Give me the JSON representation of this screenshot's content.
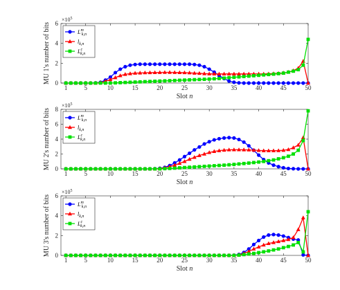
{
  "chart_data": [
    {
      "type": "line",
      "ylabel": "MU 1's number of bits",
      "xlabel": "Slot n",
      "exponent_label": "×10",
      "exponent_power": "5",
      "xlim": [
        0,
        50
      ],
      "ylim": [
        0,
        6
      ],
      "x_ticks": [
        1,
        5,
        10,
        15,
        20,
        25,
        30,
        35,
        40,
        45,
        50
      ],
      "y_ticks": [
        0,
        2,
        4,
        6
      ],
      "x": [
        1,
        2,
        3,
        4,
        5,
        6,
        7,
        8,
        9,
        10,
        11,
        12,
        13,
        14,
        15,
        16,
        17,
        18,
        19,
        20,
        21,
        22,
        23,
        24,
        25,
        26,
        27,
        28,
        29,
        30,
        31,
        32,
        33,
        34,
        35,
        36,
        37,
        38,
        39,
        40,
        41,
        42,
        43,
        44,
        45,
        46,
        47,
        48,
        49,
        50
      ],
      "series": [
        {
          "legend_main": "L",
          "legend_sup": "m",
          "legend_sub": "k,n",
          "color": "#0000ff",
          "marker": "circle",
          "values": [
            0,
            0,
            0,
            0,
            0,
            0,
            0.02,
            0.08,
            0.3,
            0.6,
            1.05,
            1.4,
            1.65,
            1.8,
            1.87,
            1.9,
            1.9,
            1.9,
            1.9,
            1.9,
            1.9,
            1.9,
            1.9,
            1.9,
            1.9,
            1.9,
            1.87,
            1.8,
            1.65,
            1.4,
            1.1,
            0.75,
            0.45,
            0.2,
            0.08,
            0.02,
            0,
            0,
            0,
            0,
            0,
            0,
            0,
            0,
            0,
            0,
            0,
            0,
            0,
            0
          ]
        },
        {
          "legend_main": "l",
          "legend_sup": "",
          "legend_sub": "k,n",
          "color": "#ff0000",
          "marker": "triangle",
          "values": [
            0,
            0,
            0,
            0,
            0,
            0,
            0,
            0.05,
            0.18,
            0.35,
            0.55,
            0.75,
            0.88,
            0.95,
            1.0,
            1.02,
            1.04,
            1.05,
            1.06,
            1.07,
            1.08,
            1.08,
            1.07,
            1.06,
            1.05,
            1.03,
            1.0,
            0.98,
            0.95,
            0.93,
            0.92,
            0.92,
            0.92,
            0.92,
            0.92,
            0.92,
            0.92,
            0.92,
            0.92,
            0.92,
            0.92,
            0.93,
            0.95,
            0.98,
            1.02,
            1.1,
            1.25,
            1.5,
            2.2,
            0
          ]
        },
        {
          "legend_main": "L",
          "legend_sup": "c",
          "legend_sub": "k,n",
          "color": "#00e000",
          "marker": "square",
          "values": [
            0,
            0,
            0,
            0,
            0,
            0,
            0,
            0,
            0,
            0,
            0.02,
            0.04,
            0.06,
            0.08,
            0.1,
            0.12,
            0.14,
            0.16,
            0.18,
            0.2,
            0.22,
            0.24,
            0.26,
            0.28,
            0.3,
            0.32,
            0.34,
            0.36,
            0.38,
            0.4,
            0.43,
            0.46,
            0.5,
            0.54,
            0.58,
            0.62,
            0.66,
            0.7,
            0.74,
            0.78,
            0.82,
            0.86,
            0.9,
            0.95,
            1.0,
            1.1,
            1.2,
            1.35,
            1.8,
            4.4
          ]
        }
      ]
    },
    {
      "type": "line",
      "ylabel": "MU 2's number of bits",
      "xlabel": "Slot n",
      "exponent_label": "×10",
      "exponent_power": "5",
      "xlim": [
        0,
        50
      ],
      "ylim": [
        0,
        8
      ],
      "x_ticks": [
        1,
        5,
        10,
        15,
        20,
        25,
        30,
        35,
        40,
        45,
        50
      ],
      "y_ticks": [
        0,
        2,
        4,
        6,
        8
      ],
      "x": [
        1,
        2,
        3,
        4,
        5,
        6,
        7,
        8,
        9,
        10,
        11,
        12,
        13,
        14,
        15,
        16,
        17,
        18,
        19,
        20,
        21,
        22,
        23,
        24,
        25,
        26,
        27,
        28,
        29,
        30,
        31,
        32,
        33,
        34,
        35,
        36,
        37,
        38,
        39,
        40,
        41,
        42,
        43,
        44,
        45,
        46,
        47,
        48,
        49,
        50
      ],
      "series": [
        {
          "legend_main": "L",
          "legend_sup": "m",
          "legend_sub": "k,n",
          "color": "#0000ff",
          "marker": "circle",
          "values": [
            0,
            0,
            0,
            0,
            0,
            0,
            0,
            0,
            0,
            0,
            0,
            0,
            0,
            0,
            0,
            0,
            0,
            0,
            0.02,
            0.08,
            0.2,
            0.45,
            0.8,
            1.2,
            1.65,
            2.1,
            2.55,
            2.95,
            3.35,
            3.65,
            3.9,
            4.05,
            4.15,
            4.2,
            4.15,
            3.95,
            3.6,
            3.1,
            2.5,
            1.85,
            1.25,
            0.8,
            0.5,
            0.3,
            0.15,
            0.05,
            0.02,
            0,
            0,
            0
          ]
        },
        {
          "legend_main": "l",
          "legend_sup": "",
          "legend_sub": "k,n",
          "color": "#ff0000",
          "marker": "triangle",
          "values": [
            0,
            0,
            0,
            0,
            0,
            0,
            0,
            0,
            0,
            0,
            0,
            0,
            0,
            0,
            0,
            0,
            0,
            0,
            0,
            0.05,
            0.15,
            0.3,
            0.5,
            0.75,
            1.0,
            1.3,
            1.55,
            1.8,
            2.0,
            2.2,
            2.35,
            2.45,
            2.52,
            2.56,
            2.58,
            2.58,
            2.57,
            2.55,
            2.52,
            2.48,
            2.45,
            2.45,
            2.45,
            2.46,
            2.5,
            2.6,
            2.85,
            3.2,
            4.2,
            0
          ]
        },
        {
          "legend_main": "L",
          "legend_sup": "c",
          "legend_sub": "k,n",
          "color": "#00e000",
          "marker": "square",
          "values": [
            0,
            0,
            0,
            0,
            0,
            0,
            0,
            0,
            0,
            0,
            0,
            0,
            0,
            0,
            0,
            0,
            0,
            0,
            0,
            0,
            0.03,
            0.06,
            0.1,
            0.14,
            0.18,
            0.22,
            0.26,
            0.3,
            0.34,
            0.38,
            0.42,
            0.46,
            0.5,
            0.55,
            0.6,
            0.66,
            0.72,
            0.78,
            0.85,
            0.92,
            1.0,
            1.1,
            1.2,
            1.35,
            1.5,
            1.7,
            2.0,
            2.5,
            3.8,
            7.8
          ]
        }
      ]
    },
    {
      "type": "line",
      "ylabel": "MU 3's number of bits",
      "xlabel": "Slot n",
      "exponent_label": "×10",
      "exponent_power": "5",
      "xlim": [
        0,
        50
      ],
      "ylim": [
        0,
        6
      ],
      "x_ticks": [
        1,
        5,
        10,
        15,
        20,
        25,
        30,
        35,
        40,
        45,
        50
      ],
      "y_ticks": [
        0,
        2,
        4,
        6
      ],
      "x": [
        1,
        2,
        3,
        4,
        5,
        6,
        7,
        8,
        9,
        10,
        11,
        12,
        13,
        14,
        15,
        16,
        17,
        18,
        19,
        20,
        21,
        22,
        23,
        24,
        25,
        26,
        27,
        28,
        29,
        30,
        31,
        32,
        33,
        34,
        35,
        36,
        37,
        38,
        39,
        40,
        41,
        42,
        43,
        44,
        45,
        46,
        47,
        48,
        49,
        50
      ],
      "series": [
        {
          "legend_main": "L",
          "legend_sup": "m",
          "legend_sub": "k,n",
          "color": "#0000ff",
          "marker": "circle",
          "values": [
            0,
            0,
            0,
            0,
            0,
            0,
            0,
            0,
            0,
            0,
            0,
            0,
            0,
            0,
            0,
            0,
            0,
            0,
            0,
            0,
            0,
            0,
            0,
            0,
            0,
            0,
            0,
            0,
            0,
            0,
            0,
            0,
            0,
            0,
            0.02,
            0.1,
            0.3,
            0.65,
            1.1,
            1.5,
            1.85,
            2.05,
            2.1,
            2.05,
            1.95,
            1.8,
            1.65,
            1.55,
            0.05,
            0
          ]
        },
        {
          "legend_main": "l",
          "legend_sup": "",
          "legend_sub": "k,n",
          "color": "#ff0000",
          "marker": "triangle",
          "values": [
            0,
            0,
            0,
            0,
            0,
            0,
            0,
            0,
            0,
            0,
            0,
            0,
            0,
            0,
            0,
            0,
            0,
            0,
            0,
            0,
            0,
            0,
            0,
            0,
            0,
            0,
            0,
            0,
            0,
            0,
            0,
            0,
            0,
            0,
            0,
            0.05,
            0.2,
            0.4,
            0.65,
            0.85,
            1.05,
            1.2,
            1.3,
            1.4,
            1.5,
            1.6,
            1.8,
            2.6,
            3.8,
            0
          ]
        },
        {
          "legend_main": "L",
          "legend_sup": "c",
          "legend_sub": "k,n",
          "color": "#00e000",
          "marker": "square",
          "values": [
            0,
            0,
            0,
            0,
            0,
            0,
            0,
            0,
            0,
            0,
            0,
            0,
            0,
            0,
            0,
            0,
            0,
            0,
            0,
            0,
            0,
            0,
            0,
            0,
            0,
            0,
            0,
            0,
            0,
            0,
            0,
            0,
            0,
            0,
            0,
            0.03,
            0.08,
            0.14,
            0.2,
            0.28,
            0.36,
            0.45,
            0.55,
            0.65,
            0.78,
            0.9,
            1.05,
            1.3,
            0.35,
            4.4
          ]
        }
      ]
    }
  ]
}
